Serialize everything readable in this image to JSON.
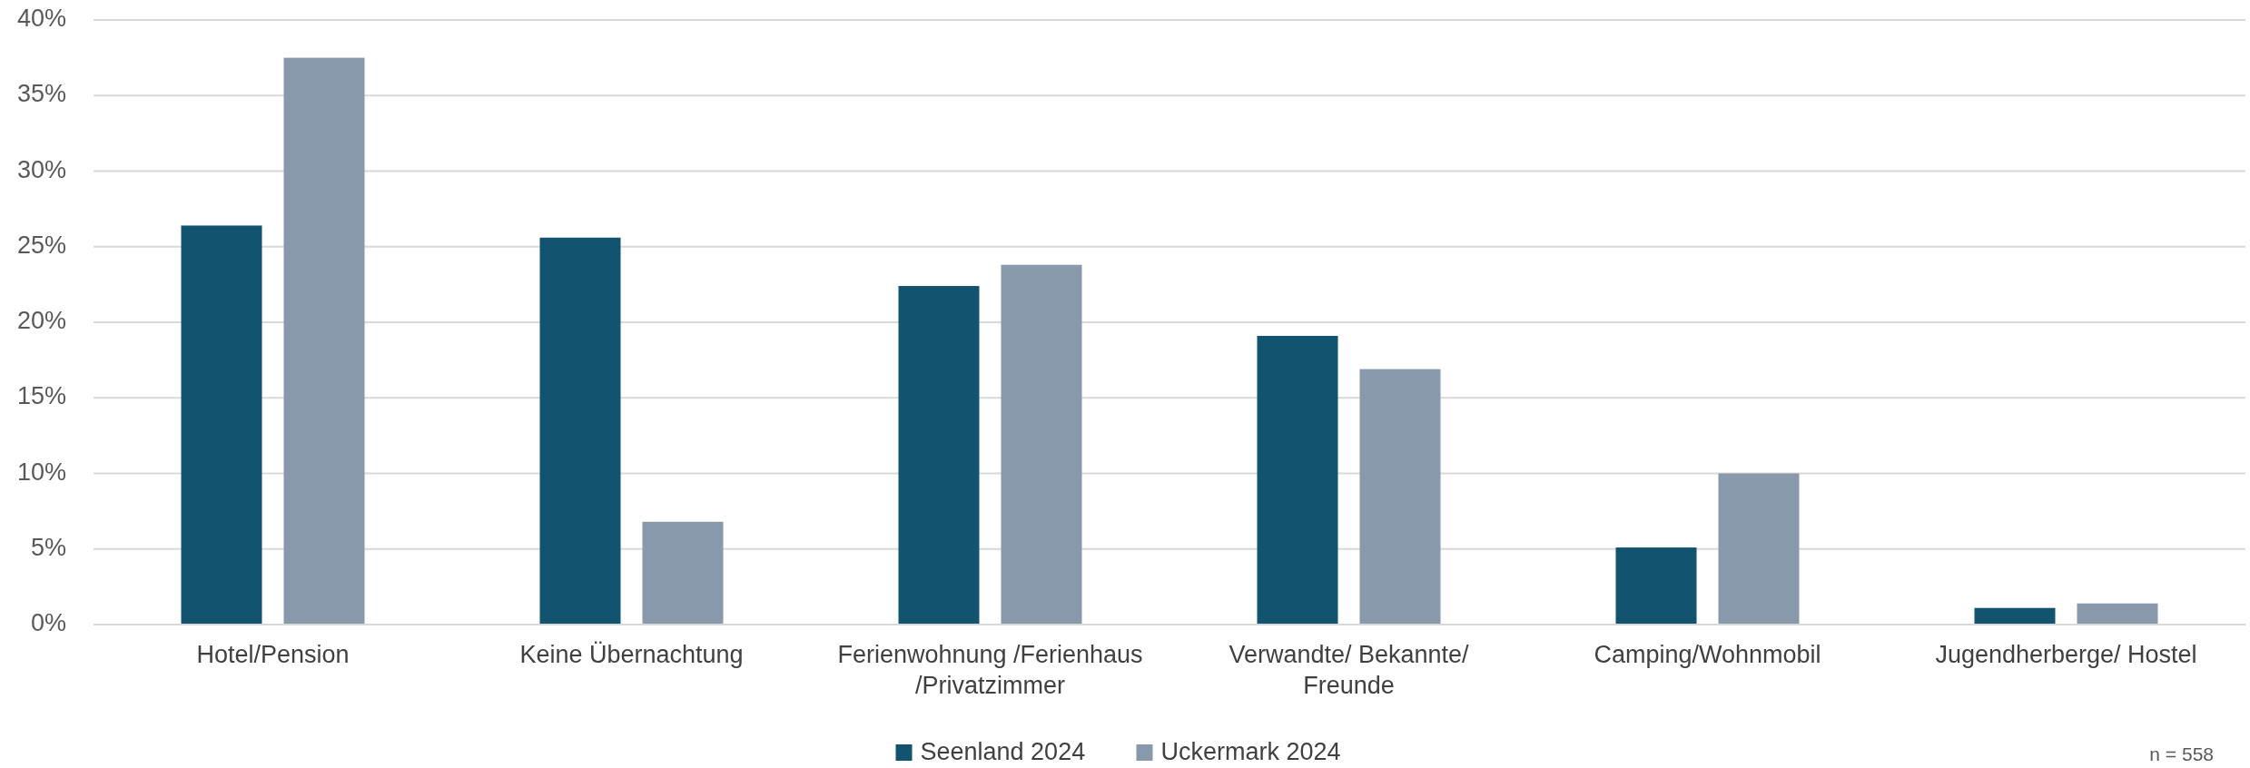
{
  "chart_data": {
    "type": "bar",
    "categories": [
      "Hotel/Pension",
      "Keine Übernachtung",
      "Ferienwohnung /Ferienhaus /Privatzimmer",
      "Verwandte/ Bekannte/ Freunde",
      "Camping/Wohnmobil",
      "Jugendherberge/ Hostel"
    ],
    "series": [
      {
        "name": "Seenland 2024",
        "color": "#12546f",
        "values": [
          26.4,
          25.6,
          22.4,
          19.1,
          5.1,
          1.1
        ]
      },
      {
        "name": "Uckermark 2024",
        "color": "#8799aa",
        "values": [
          37.5,
          6.8,
          23.8,
          16.9,
          10.0,
          1.4
        ]
      }
    ],
    "ylim": [
      0,
      40
    ],
    "yticks": [
      {
        "value": 0,
        "label": "0%"
      },
      {
        "value": 5,
        "label": "5%"
      },
      {
        "value": 10,
        "label": "10%"
      },
      {
        "value": 15,
        "label": "15%"
      },
      {
        "value": 20,
        "label": "20%"
      },
      {
        "value": 25,
        "label": "25%"
      },
      {
        "value": 30,
        "label": "30%"
      },
      {
        "value": 35,
        "label": "35%"
      },
      {
        "value": 40,
        "label": "40%"
      }
    ],
    "grid": "y",
    "legend": "bottom",
    "annotations": [
      "n = 558"
    ]
  }
}
